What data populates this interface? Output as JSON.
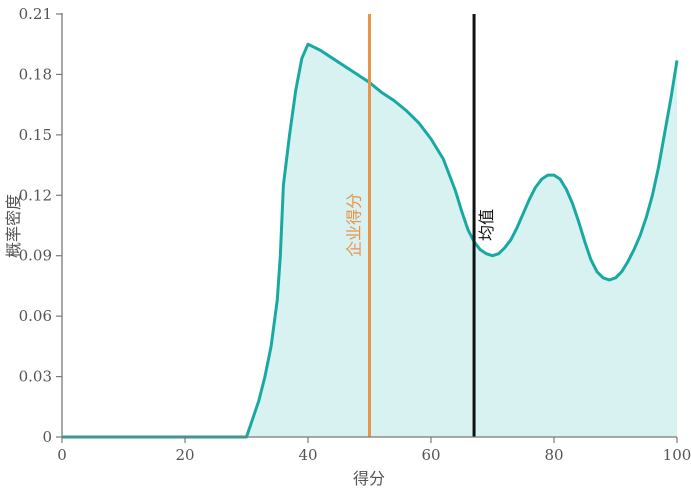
{
  "chart_data": {
    "type": "area",
    "xlabel": "得分",
    "ylabel": "概率密度",
    "xlim": [
      0,
      100
    ],
    "ylim": [
      0,
      0.21
    ],
    "x_ticks": [
      "0",
      "20",
      "40",
      "60",
      "80",
      "100"
    ],
    "y_ticks": [
      "0",
      "0.03",
      "0.06",
      "0.09",
      "0.12",
      "0.15",
      "0.18",
      "0.21"
    ],
    "x_tick_values": [
      0,
      20,
      40,
      60,
      80,
      100
    ],
    "y_tick_values": [
      0,
      0.03,
      0.06,
      0.09,
      0.12,
      0.15,
      0.18,
      0.21
    ],
    "grid": false,
    "series": [
      {
        "x": [
          0,
          10,
          20,
          30,
          32,
          33,
          34,
          35,
          35.5,
          36,
          37,
          38,
          39,
          40,
          42,
          44,
          46,
          48,
          50,
          52,
          54,
          56,
          58,
          60,
          62,
          63,
          64,
          65,
          66,
          67,
          68,
          69,
          70,
          71,
          72,
          73,
          74,
          75,
          76,
          77,
          78,
          79,
          80,
          81,
          82,
          83,
          84,
          85,
          86,
          87,
          88,
          89,
          90,
          91,
          92,
          93,
          94,
          95,
          96,
          97,
          98,
          99,
          100
        ],
        "y": [
          0,
          0,
          0,
          0,
          0.018,
          0.03,
          0.045,
          0.068,
          0.09,
          0.125,
          0.15,
          0.172,
          0.188,
          0.195,
          0.192,
          0.188,
          0.184,
          0.18,
          0.176,
          0.171,
          0.167,
          0.162,
          0.156,
          0.148,
          0.138,
          0.13,
          0.122,
          0.112,
          0.103,
          0.097,
          0.093,
          0.091,
          0.09,
          0.091,
          0.094,
          0.098,
          0.104,
          0.111,
          0.118,
          0.124,
          0.128,
          0.13,
          0.13,
          0.128,
          0.123,
          0.116,
          0.107,
          0.097,
          0.088,
          0.082,
          0.079,
          0.078,
          0.079,
          0.082,
          0.087,
          0.093,
          0.1,
          0.109,
          0.12,
          0.134,
          0.151,
          0.168,
          0.187
        ]
      }
    ],
    "markers": [
      {
        "label": "企业得分",
        "x": 50,
        "color": "#e8954b"
      },
      {
        "label": "均值",
        "x": 67,
        "color": "#111111"
      }
    ],
    "colors": {
      "line": "#1aa9a2",
      "fill": "#d8f1f1",
      "axis": "#7a7a7a",
      "text": "#555555"
    }
  }
}
